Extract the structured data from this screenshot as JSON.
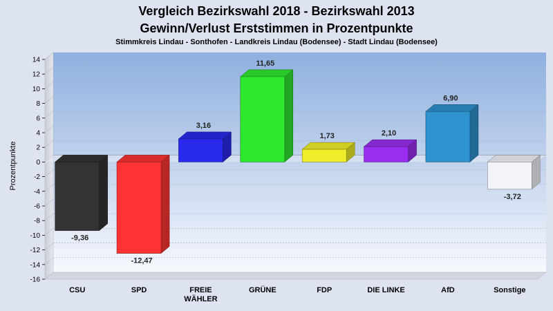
{
  "chart_data": {
    "type": "bar",
    "title": "Vergleich Bezirkswahl 2018 - Bezirkswahl 2013",
    "subtitle": "Gewinn/Verlust Erststimmen in Prozentpunkte",
    "caption": "Stimmkreis Lindau - Sonthofen - Landkreis Lindau (Bodensee) - Stadt Lindau (Bodensee)",
    "ylabel": "Prozentpunkte",
    "xlabel": "",
    "ylim": [
      -16,
      14
    ],
    "yticks": [
      14,
      12,
      10,
      8,
      6,
      4,
      2,
      0,
      -2,
      -4,
      -6,
      -8,
      -10,
      -12,
      -14,
      -16
    ],
    "grid": true,
    "categories": [
      {
        "lines": [
          "CSU"
        ]
      },
      {
        "lines": [
          "SPD"
        ]
      },
      {
        "lines": [
          "FREIE",
          "WÄHLER"
        ]
      },
      {
        "lines": [
          "GRÜNE"
        ]
      },
      {
        "lines": [
          "FDP"
        ]
      },
      {
        "lines": [
          "DIE LINKE"
        ]
      },
      {
        "lines": [
          "AfD"
        ]
      },
      {
        "lines": [
          "Sonstige"
        ]
      }
    ],
    "values": [
      -9.36,
      -12.47,
      3.16,
      11.65,
      1.73,
      2.1,
      6.9,
      -3.72
    ],
    "value_labels": [
      "-9,36",
      "-12,47",
      "3,16",
      "11,65",
      "1,73",
      "2,10",
      "6,90",
      "-3,72"
    ],
    "colors": [
      "#333333",
      "#ff3333",
      "#2a2aee",
      "#2ee82e",
      "#eeee2a",
      "#9a2ef0",
      "#2e92cf",
      "#f2f4fa"
    ]
  }
}
